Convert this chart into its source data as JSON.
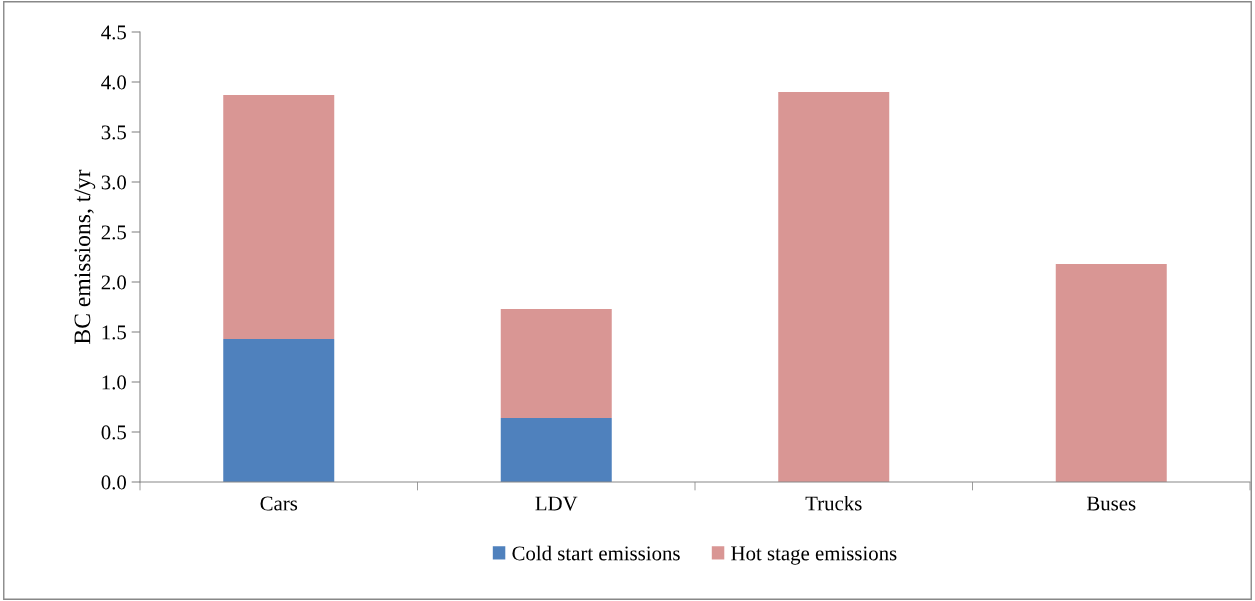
{
  "chart_data": {
    "type": "bar",
    "stacked": true,
    "ylabel": "BC emissions, t/yr",
    "categories": [
      "Cars",
      "LDV",
      "Trucks",
      "Buses"
    ],
    "series": [
      {
        "name": "Cold start emissions",
        "color": "#4f81bd",
        "values": [
          1.43,
          0.64,
          0,
          0
        ]
      },
      {
        "name": "Hot stage emissions",
        "color": "#d99694",
        "values": [
          2.44,
          1.09,
          3.9,
          2.18
        ]
      }
    ],
    "ylim": [
      0,
      4.5
    ],
    "yticks": [
      {
        "value": 0,
        "label": "0.0"
      },
      {
        "value": 0.5,
        "label": "0.5"
      },
      {
        "value": 1,
        "label": "1.0"
      },
      {
        "value": 1.5,
        "label": "1.5"
      },
      {
        "value": 2,
        "label": "2.0"
      },
      {
        "value": 2.5,
        "label": "2.5"
      },
      {
        "value": 3,
        "label": "3.0"
      },
      {
        "value": 3.5,
        "label": "3.5"
      },
      {
        "value": 4,
        "label": "4.0"
      },
      {
        "value": 4.5,
        "label": "4.5"
      }
    ],
    "grid": false,
    "legend": "bottom"
  }
}
